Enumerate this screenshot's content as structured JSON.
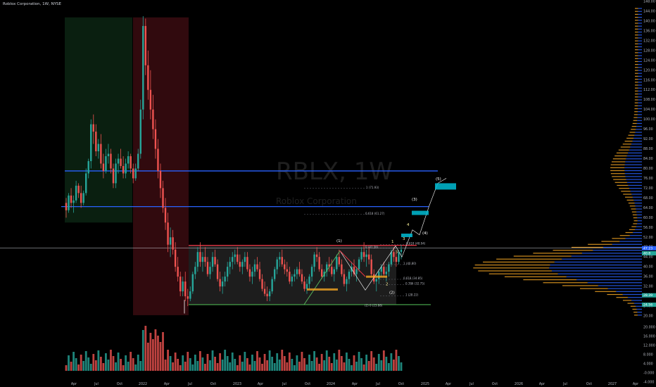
{
  "header": {
    "symbol_name": "Roblox Corporation",
    "interval": "1W",
    "exchange": "NYSE",
    "text": "Roblox Corporation, 1W, NYSE"
  },
  "watermark": {
    "ticker": "RBLX, 1W",
    "company": "Roblox Corporation"
  },
  "colors": {
    "background": "#000000",
    "up": "#26a69a",
    "down": "#ef5350",
    "resistance": "#f23645",
    "support_green": "#4caf50",
    "horizontal_blue": "#2962ff",
    "fib_target": "#00bcd4",
    "vp_up": "#2962ff",
    "vp_down": "#f5a623",
    "grid_text": "#b2b5be"
  },
  "chart_data": {
    "type": "candlestick",
    "title": "RBLX, 1W",
    "subtitle": "Roblox Corporation",
    "x_tick_labels": [
      "Apr",
      "Jul",
      "Oct",
      "2022",
      "Apr",
      "Jul",
      "Oct",
      "2023",
      "Apr",
      "Jul",
      "Oct",
      "2024",
      "Apr",
      "Jul",
      "Oct",
      "2025",
      "Apr",
      "Jul",
      "Oct",
      "2026",
      "Apr",
      "Jul",
      "Oct",
      "2027",
      "Apr"
    ],
    "y_tick_labels": [
      "148.00",
      "144.00",
      "140.00",
      "136.00",
      "132.00",
      "128.00",
      "124.00",
      "120.00",
      "116.00",
      "112.00",
      "108.00",
      "104.00",
      "100.00",
      "96.00",
      "92.00",
      "88.00",
      "84.00",
      "80.00",
      "76.00",
      "72.00",
      "68.00",
      "64.00",
      "60.00",
      "56.00",
      "52.00",
      "48.00",
      "44.00",
      "40.00",
      "36.00",
      "32.00",
      "28.00",
      "24.00",
      "20.00"
    ],
    "volume_tick_labels": [
      "20.000",
      "16.000",
      "12.000",
      "8.000",
      "4.000",
      "-0.000",
      "-4.000"
    ],
    "ylim": [
      20,
      148
    ],
    "price_labels": {
      "last_price": "47.23",
      "near_last": "40.8",
      "box_low": "28.39",
      "box_bottom": "24.56"
    },
    "horizontal_levels": [
      {
        "name": "blue upper",
        "value": 79.0,
        "color": "#2962ff"
      },
      {
        "name": "blue lower",
        "value": 64.5,
        "color": "#2962ff"
      },
      {
        "name": "range resistance",
        "value": 48.7,
        "color": "#f23645"
      },
      {
        "name": "range support",
        "value": 24.6,
        "color": "#4caf50"
      }
    ],
    "annotations": {
      "wave_labels": [
        "(1)",
        "(2)",
        "(3)",
        "(4)",
        "(5)",
        "1",
        "2",
        "3",
        "4",
        "5"
      ],
      "fib_labels": [
        "1 (71.93)",
        "0.618 (61.27)",
        "0 (47.56)",
        "0.618 (48.94)",
        "1 (40.80)",
        "0.618 (34.85)",
        "0.786 (32.75)",
        "1 (28.22)",
        "(2) 0 (23.88)"
      ]
    },
    "series": [
      {
        "name": "RBLX weekly",
        "ohlc": [
          [
            66,
            68,
            60,
            63
          ],
          [
            63,
            70,
            62,
            69
          ],
          [
            69,
            72,
            64,
            66
          ],
          [
            66,
            69,
            62,
            67
          ],
          [
            67,
            75,
            66,
            73
          ],
          [
            73,
            74,
            68,
            70
          ],
          [
            70,
            73,
            64,
            66
          ],
          [
            66,
            71,
            65,
            70
          ],
          [
            70,
            80,
            69,
            78
          ],
          [
            78,
            84,
            76,
            83
          ],
          [
            83,
            100,
            80,
            98
          ],
          [
            98,
            102,
            90,
            95
          ],
          [
            95,
            98,
            85,
            87
          ],
          [
            87,
            92,
            84,
            90
          ],
          [
            90,
            94,
            80,
            82
          ],
          [
            82,
            86,
            76,
            79
          ],
          [
            79,
            88,
            78,
            85
          ],
          [
            85,
            90,
            82,
            86
          ],
          [
            86,
            88,
            78,
            80
          ],
          [
            80,
            82,
            72,
            74
          ],
          [
            74,
            84,
            72,
            82
          ],
          [
            82,
            86,
            78,
            84
          ],
          [
            84,
            88,
            80,
            81
          ],
          [
            81,
            85,
            76,
            78
          ],
          [
            78,
            84,
            76,
            82
          ],
          [
            82,
            87,
            80,
            85
          ],
          [
            85,
            86,
            78,
            80
          ],
          [
            80,
            82,
            74,
            76
          ],
          [
            76,
            82,
            75,
            80
          ],
          [
            80,
            88,
            79,
            86
          ],
          [
            86,
            108,
            84,
            104
          ],
          [
            104,
            142,
            100,
            138
          ],
          [
            138,
            141,
            118,
            122
          ],
          [
            122,
            128,
            108,
            112
          ],
          [
            112,
            120,
            100,
            104
          ],
          [
            104,
            110,
            92,
            96
          ],
          [
            96,
            100,
            84,
            88
          ],
          [
            88,
            92,
            76,
            79
          ],
          [
            79,
            82,
            68,
            72
          ],
          [
            72,
            75,
            62,
            64
          ],
          [
            64,
            68,
            55,
            58
          ],
          [
            58,
            62,
            46,
            49
          ],
          [
            49,
            56,
            44,
            52
          ],
          [
            52,
            55,
            45,
            47
          ],
          [
            47,
            50,
            38,
            40
          ],
          [
            40,
            44,
            34,
            36
          ],
          [
            36,
            38,
            28,
            30
          ],
          [
            30,
            36,
            28,
            34
          ],
          [
            34,
            38,
            26,
            28
          ],
          [
            28,
            31,
            24,
            27
          ],
          [
            27,
            32,
            26,
            30
          ],
          [
            30,
            38,
            29,
            37
          ],
          [
            37,
            42,
            35,
            40
          ],
          [
            40,
            48,
            38,
            46
          ],
          [
            46,
            50,
            40,
            42
          ],
          [
            42,
            46,
            38,
            44
          ],
          [
            44,
            48,
            40,
            42
          ],
          [
            42,
            44,
            36,
            37
          ],
          [
            37,
            42,
            35,
            40
          ],
          [
            40,
            46,
            38,
            44
          ],
          [
            44,
            47,
            40,
            41
          ],
          [
            41,
            43,
            34,
            35
          ],
          [
            35,
            38,
            30,
            32
          ],
          [
            32,
            36,
            29,
            34
          ],
          [
            34,
            38,
            32,
            36
          ],
          [
            36,
            42,
            34,
            40
          ],
          [
            40,
            44,
            37,
            42
          ],
          [
            42,
            46,
            39,
            44
          ],
          [
            44,
            47,
            41,
            45
          ],
          [
            45,
            48,
            41,
            42
          ],
          [
            42,
            45,
            38,
            40
          ],
          [
            40,
            43,
            37,
            42
          ],
          [
            42,
            46,
            40,
            44
          ],
          [
            44,
            46,
            38,
            39
          ],
          [
            39,
            41,
            34,
            36
          ],
          [
            36,
            40,
            33,
            38
          ],
          [
            38,
            43,
            36,
            41
          ],
          [
            41,
            44,
            38,
            39
          ],
          [
            39,
            42,
            34,
            35
          ],
          [
            35,
            37,
            30,
            31
          ],
          [
            31,
            34,
            28,
            29
          ],
          [
            29,
            32,
            26,
            28
          ],
          [
            28,
            31,
            26,
            30
          ],
          [
            30,
            36,
            29,
            35
          ],
          [
            35,
            40,
            34,
            39
          ],
          [
            39,
            44,
            37,
            43
          ],
          [
            43,
            46,
            40,
            44
          ],
          [
            44,
            47,
            40,
            41
          ],
          [
            41,
            43,
            37,
            39
          ],
          [
            39,
            42,
            36,
            38
          ],
          [
            38,
            40,
            33,
            34
          ],
          [
            34,
            37,
            32,
            36
          ],
          [
            36,
            39,
            34,
            37
          ],
          [
            37,
            40,
            35,
            39
          ],
          [
            39,
            42,
            36,
            37
          ],
          [
            37,
            39,
            33,
            34
          ],
          [
            34,
            36,
            30,
            31
          ],
          [
            31,
            35,
            29,
            33
          ],
          [
            33,
            37,
            31,
            36
          ],
          [
            36,
            41,
            34,
            40
          ],
          [
            40,
            46,
            38,
            45
          ],
          [
            45,
            48,
            42,
            44
          ],
          [
            44,
            46,
            38,
            39
          ],
          [
            39,
            41,
            35,
            36
          ],
          [
            36,
            39,
            34,
            38
          ],
          [
            38,
            42,
            36,
            41
          ],
          [
            41,
            44,
            38,
            40
          ],
          [
            40,
            43,
            36,
            37
          ],
          [
            37,
            40,
            34,
            39
          ],
          [
            39,
            45,
            38,
            44
          ],
          [
            44,
            47,
            40,
            41
          ],
          [
            41,
            43,
            36,
            37
          ],
          [
            37,
            39,
            32,
            33
          ],
          [
            33,
            36,
            30,
            35
          ],
          [
            35,
            39,
            33,
            38
          ],
          [
            38,
            42,
            36,
            40
          ],
          [
            40,
            43,
            36,
            37
          ],
          [
            37,
            40,
            34,
            39
          ],
          [
            39,
            44,
            38,
            43
          ],
          [
            43,
            48,
            42,
            46
          ],
          [
            46,
            50,
            42,
            44
          ],
          [
            44,
            47,
            40,
            45
          ],
          [
            45,
            48,
            41,
            43
          ],
          [
            43,
            45,
            36,
            37
          ],
          [
            37,
            39,
            33,
            34
          ],
          [
            34,
            37,
            30,
            35
          ],
          [
            35,
            39,
            33,
            38
          ],
          [
            38,
            41,
            36,
            40
          ],
          [
            40,
            42,
            36,
            37
          ],
          [
            37,
            40,
            34,
            38
          ],
          [
            38,
            42,
            36,
            41
          ],
          [
            41,
            47,
            40,
            46
          ],
          [
            46,
            48,
            42,
            44
          ],
          [
            44,
            46,
            40,
            42
          ],
          [
            42,
            47,
            41,
            46
          ],
          [
            46,
            49,
            43,
            47
          ]
        ]
      }
    ],
    "volume": "weekly volume bars (estimated)",
    "volume_profile": "visible range volume profile on right side"
  }
}
